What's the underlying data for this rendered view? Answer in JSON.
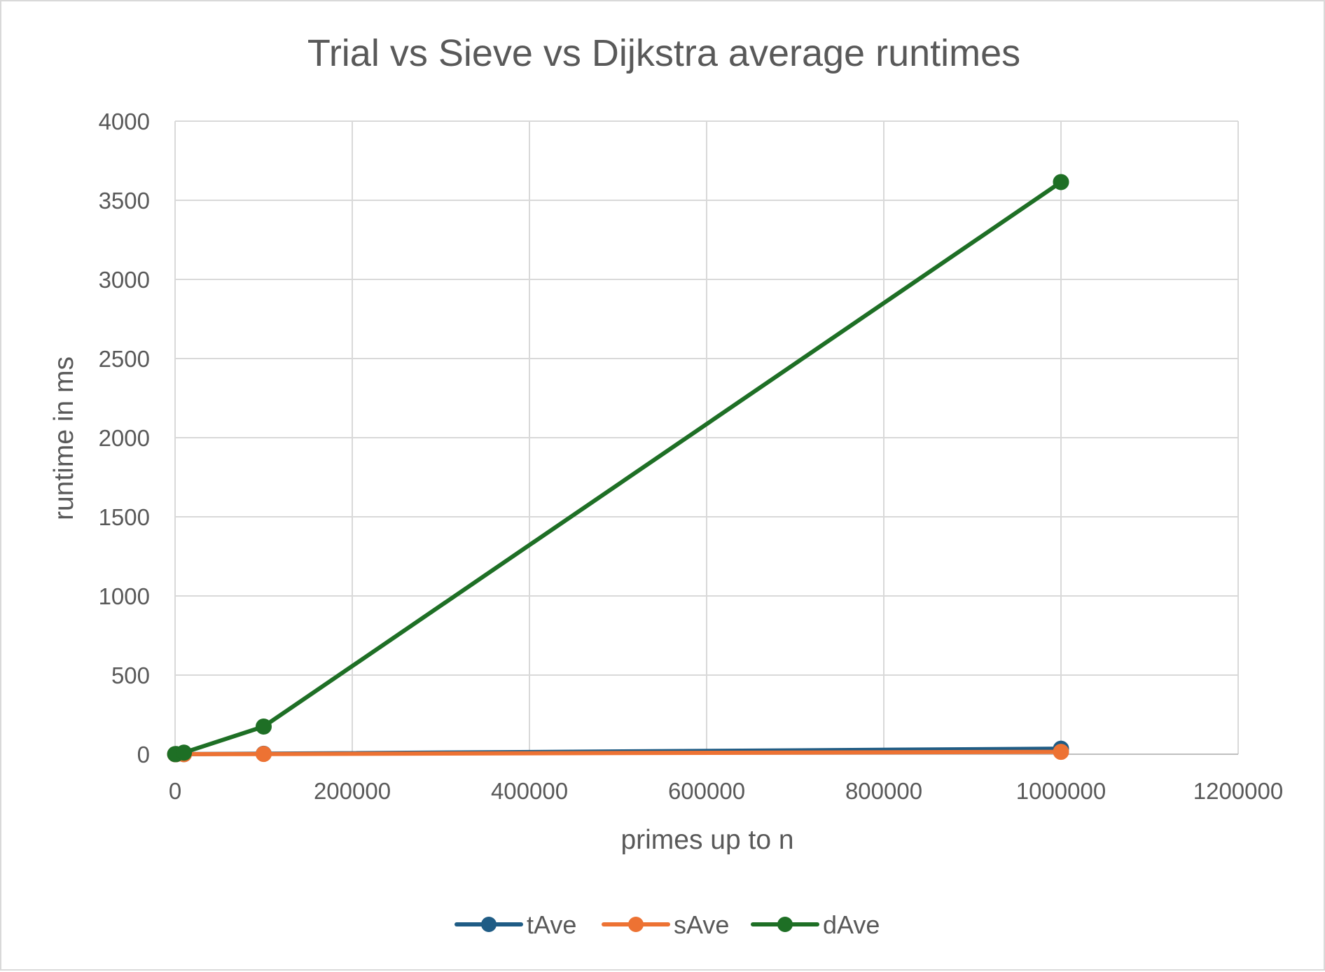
{
  "chart_data": {
    "type": "line",
    "title": "Trial vs Sieve vs Dijkstra average runtimes",
    "xlabel": "primes up to n",
    "ylabel": "runtime in ms",
    "xlim": [
      0,
      1200000
    ],
    "ylim": [
      0,
      4000
    ],
    "x_ticks": [
      "0",
      "200000",
      "400000",
      "600000",
      "800000",
      "1000000",
      "1200000"
    ],
    "y_ticks": [
      "0",
      "500",
      "1000",
      "1500",
      "2000",
      "2500",
      "3000",
      "3500",
      "4000"
    ],
    "x": [
      100,
      1000,
      10000,
      100000,
      1000000
    ],
    "series": [
      {
        "name": "tAve",
        "color": "#1f5c85",
        "values": [
          0.1,
          0.2,
          0.5,
          3,
          35
        ]
      },
      {
        "name": "sAve",
        "color": "#ed7233",
        "values": [
          0.05,
          0.1,
          0.3,
          1.5,
          15
        ]
      },
      {
        "name": "dAve",
        "color": "#1e6f25",
        "values": [
          0.5,
          1,
          10,
          175,
          3615
        ]
      }
    ],
    "grid": true,
    "legend_position": "bottom",
    "marker": "circle"
  }
}
